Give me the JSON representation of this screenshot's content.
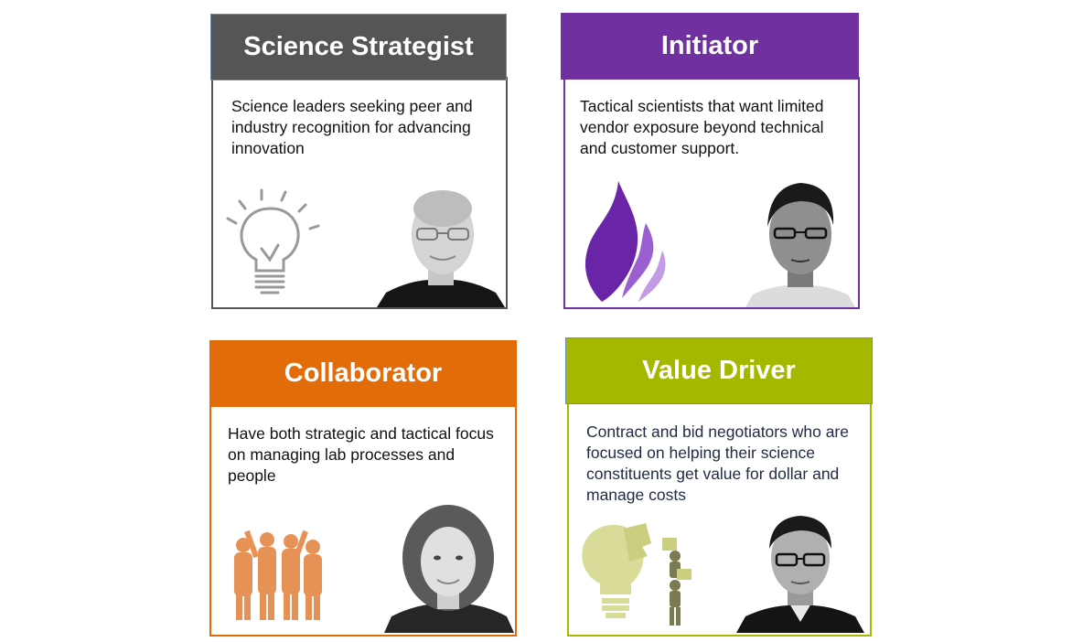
{
  "cards": [
    {
      "title": "Science Strategist",
      "description": "Science leaders seeking peer and industry recognition for advancing innovation",
      "color": "#555555",
      "icon": "lightbulb-icon"
    },
    {
      "title": "Initiator",
      "description": "Tactical scientists that want limited vendor exposure beyond technical and customer support.",
      "color": "#7030a0",
      "icon": "flame-icon"
    },
    {
      "title": "Collaborator",
      "description": "Have both strategic and tactical focus on managing lab processes and people",
      "color": "#e36c0a",
      "icon": "team-silhouettes-icon"
    },
    {
      "title": "Value Driver",
      "description": "Contract and bid negotiators who are focused on helping their science constituents get value for dollar and manage costs",
      "color": "#a5b800",
      "icon": "puzzle-lightbulb-icon"
    }
  ]
}
